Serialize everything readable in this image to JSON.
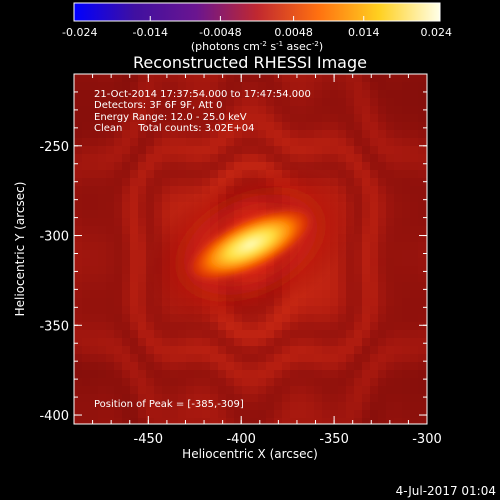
{
  "chart_data": {
    "type": "heatmap",
    "title": "Reconstructed RHESSI Image",
    "xlabel": "Heliocentric X (arcsec)",
    "ylabel": "Heliocentric Y (arcsec)",
    "xlim": [
      -490,
      -300
    ],
    "ylim": [
      -405,
      -210
    ],
    "x_ticks": [
      "-450",
      "-400",
      "-350",
      "-300"
    ],
    "x_tick_values": [
      -450,
      -400,
      -350,
      -300
    ],
    "y_ticks": [
      "-250",
      "-300",
      "-350",
      "-400"
    ],
    "y_tick_values": [
      -250,
      -300,
      -350,
      -400
    ],
    "colorbar": {
      "range": [
        -0.024,
        0.024
      ],
      "tick_labels": [
        "-0.024",
        "-0.014",
        "-0.0048",
        "0.0048",
        "0.014",
        "0.024"
      ],
      "tick_values": [
        -0.024,
        -0.014,
        -0.0048,
        0.0048,
        0.014,
        0.024
      ],
      "label_main": "(photons cm",
      "label_exp1": "-2",
      "label_mid1": " s",
      "label_exp2": "-1",
      "label_mid2": " asec",
      "label_exp3": "-2",
      "label_end": ")",
      "colors": [
        "#0000ff",
        "#4010a0",
        "#6a1590",
        "#c02830",
        "#ff7010",
        "#ffd020",
        "#ffffe8"
      ]
    },
    "annotations": {
      "line1": "21-Oct-2014 17:37:54.000 to 17:47:54.000",
      "line2": "Detectors: 3F 6F 9F, Att 0",
      "line3": "Energy Range: 12.0 - 25.0 keV",
      "line4": "Clean     Total counts: 3.02E+04",
      "peak": "Position of Peak = [-385,-309]"
    },
    "peak": {
      "x": -385,
      "y": -309
    },
    "background_level": 0.006,
    "source": {
      "x": -395,
      "y": -305,
      "elongation_deg": -25,
      "peak_value": 0.024
    }
  },
  "footer": {
    "date": "4-Jul-2017 01:04"
  }
}
